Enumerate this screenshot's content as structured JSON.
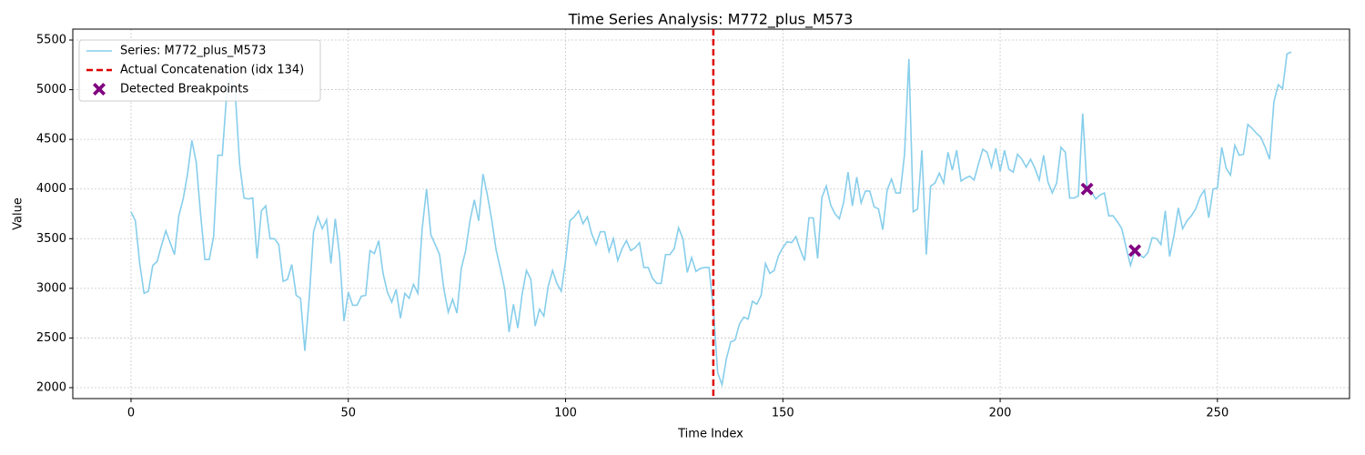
{
  "chart_data": {
    "type": "line",
    "title": "Time Series Analysis: M772_plus_M573",
    "xlabel": "Time Index",
    "ylabel": "Value",
    "xlim": [
      -13.4,
      280.4
    ],
    "ylim": [
      1890,
      5610
    ],
    "xticks": [
      0,
      50,
      100,
      150,
      200,
      250
    ],
    "yticks": [
      2000,
      2500,
      3000,
      3500,
      4000,
      4500,
      5000,
      5500
    ],
    "grid": true,
    "legend": "upper left",
    "series": [
      {
        "name": "Series: M772_plus_M573",
        "type": "line",
        "color": "#87ceeb",
        "x": [
          0,
          1,
          2,
          3,
          4,
          5,
          6,
          7,
          8,
          9,
          10,
          11,
          12,
          13,
          14,
          15,
          16,
          17,
          18,
          19,
          20,
          21,
          22,
          23,
          24,
          25,
          26,
          27,
          28,
          29,
          30,
          31,
          32,
          33,
          34,
          35,
          36,
          37,
          38,
          39,
          40,
          41,
          42,
          43,
          44,
          45,
          46,
          47,
          48,
          49,
          50,
          51,
          52,
          53,
          54,
          55,
          56,
          57,
          58,
          59,
          60,
          61,
          62,
          63,
          64,
          65,
          66,
          67,
          68,
          69,
          70,
          71,
          72,
          73,
          74,
          75,
          76,
          77,
          78,
          79,
          80,
          81,
          82,
          83,
          84,
          85,
          86,
          87,
          88,
          89,
          90,
          91,
          92,
          93,
          94,
          95,
          96,
          97,
          98,
          99,
          100,
          101,
          102,
          103,
          104,
          105,
          106,
          107,
          108,
          109,
          110,
          111,
          112,
          113,
          114,
          115,
          116,
          117,
          118,
          119,
          120,
          121,
          122,
          123,
          124,
          125,
          126,
          127,
          128,
          129,
          130,
          131,
          132,
          133,
          134,
          135,
          136,
          137,
          138,
          139,
          140,
          141,
          142,
          143,
          144,
          145,
          146,
          147,
          148,
          149,
          150,
          151,
          152,
          153,
          154,
          155,
          156,
          157,
          158,
          159,
          160,
          161,
          162,
          163,
          164,
          165,
          166,
          167,
          168,
          169,
          170,
          171,
          172,
          173,
          174,
          175,
          176,
          177,
          178,
          179,
          180,
          181,
          182,
          183,
          184,
          185,
          186,
          187,
          188,
          189,
          190,
          191,
          192,
          193,
          194,
          195,
          196,
          197,
          198,
          199,
          200,
          201,
          202,
          203,
          204,
          205,
          206,
          207,
          208,
          209,
          210,
          211,
          212,
          213,
          214,
          215,
          216,
          217,
          218,
          219,
          220,
          221,
          222,
          223,
          224,
          225,
          226,
          227,
          228,
          229,
          230,
          231,
          232,
          233,
          234,
          235,
          236,
          237,
          238,
          239,
          240,
          241,
          242,
          243,
          244,
          245,
          246,
          247,
          248,
          249,
          250,
          251,
          252,
          253,
          254,
          255,
          256,
          257,
          258,
          259,
          260,
          261,
          262,
          263,
          264,
          265,
          266,
          267
        ],
        "values": [
          3770,
          3680,
          3250,
          2950,
          2970,
          3230,
          3270,
          3430,
          3580,
          3460,
          3340,
          3730,
          3900,
          4150,
          4490,
          4270,
          3750,
          3290,
          3290,
          3520,
          4340,
          4340,
          4950,
          5150,
          4950,
          4250,
          3910,
          3900,
          3910,
          3300,
          3780,
          3830,
          3500,
          3500,
          3440,
          3070,
          3090,
          3240,
          2930,
          2900,
          2370,
          2900,
          3570,
          3720,
          3600,
          3690,
          3250,
          3700,
          3330,
          2670,
          2960,
          2830,
          2830,
          2920,
          2930,
          3380,
          3350,
          3480,
          3150,
          2960,
          2860,
          2990,
          2700,
          2950,
          2900,
          3040,
          2950,
          3600,
          4000,
          3540,
          3440,
          3340,
          2990,
          2760,
          2890,
          2750,
          3200,
          3380,
          3680,
          3890,
          3680,
          4150,
          3940,
          3690,
          3390,
          3200,
          2990,
          2560,
          2840,
          2600,
          2940,
          3180,
          3090,
          2620,
          2790,
          2720,
          3020,
          3180,
          3050,
          2970,
          3280,
          3680,
          3720,
          3780,
          3650,
          3720,
          3550,
          3440,
          3570,
          3570,
          3370,
          3500,
          3280,
          3400,
          3480,
          3380,
          3410,
          3460,
          3210,
          3210,
          3100,
          3050,
          3050,
          3340,
          3340,
          3400,
          3610,
          3500,
          3160,
          3310,
          3170,
          3200,
          3210,
          3210,
          2800,
          2150,
          2030,
          2290,
          2460,
          2480,
          2640,
          2710,
          2690,
          2870,
          2840,
          2930,
          3250,
          3150,
          3180,
          3330,
          3410,
          3470,
          3460,
          3520,
          3390,
          3280,
          3710,
          3710,
          3300,
          3920,
          4030,
          3840,
          3750,
          3700,
          3870,
          4170,
          3830,
          4120,
          3860,
          3980,
          3980,
          3820,
          3800,
          3590,
          3990,
          4100,
          3960,
          3960,
          4350,
          5310,
          3770,
          3800,
          4390,
          3340,
          4030,
          4060,
          4160,
          4060,
          4370,
          4190,
          4390,
          4080,
          4110,
          4130,
          4090,
          4250,
          4400,
          4370,
          4220,
          4410,
          4180,
          4390,
          4200,
          4170,
          4350,
          4300,
          4220,
          4300,
          4210,
          4090,
          4340,
          4070,
          3960,
          4060,
          4420,
          4370,
          3910,
          3910,
          3930,
          4760,
          4000,
          3970,
          3900,
          3940,
          3960,
          3730,
          3730,
          3670,
          3600,
          3410,
          3230,
          3380,
          3340,
          3310,
          3360,
          3510,
          3500,
          3440,
          3780,
          3320,
          3530,
          3810,
          3600,
          3680,
          3730,
          3800,
          3920,
          3990,
          3710,
          4000,
          4010,
          4420,
          4210,
          4140,
          4440,
          4340,
          4350,
          4650,
          4610,
          4560,
          4520,
          4420,
          4300,
          4880,
          5050,
          5010,
          5360,
          5380
        ]
      },
      {
        "name": "Actual Concatenation (idx 134)",
        "type": "vline",
        "color": "#dd0000",
        "dashed": true,
        "x": 134
      },
      {
        "name": "Detected Breakpoints",
        "type": "scatter",
        "color": "#800080",
        "x": [
          220,
          231
        ],
        "values": [
          4000,
          3380
        ]
      }
    ]
  }
}
